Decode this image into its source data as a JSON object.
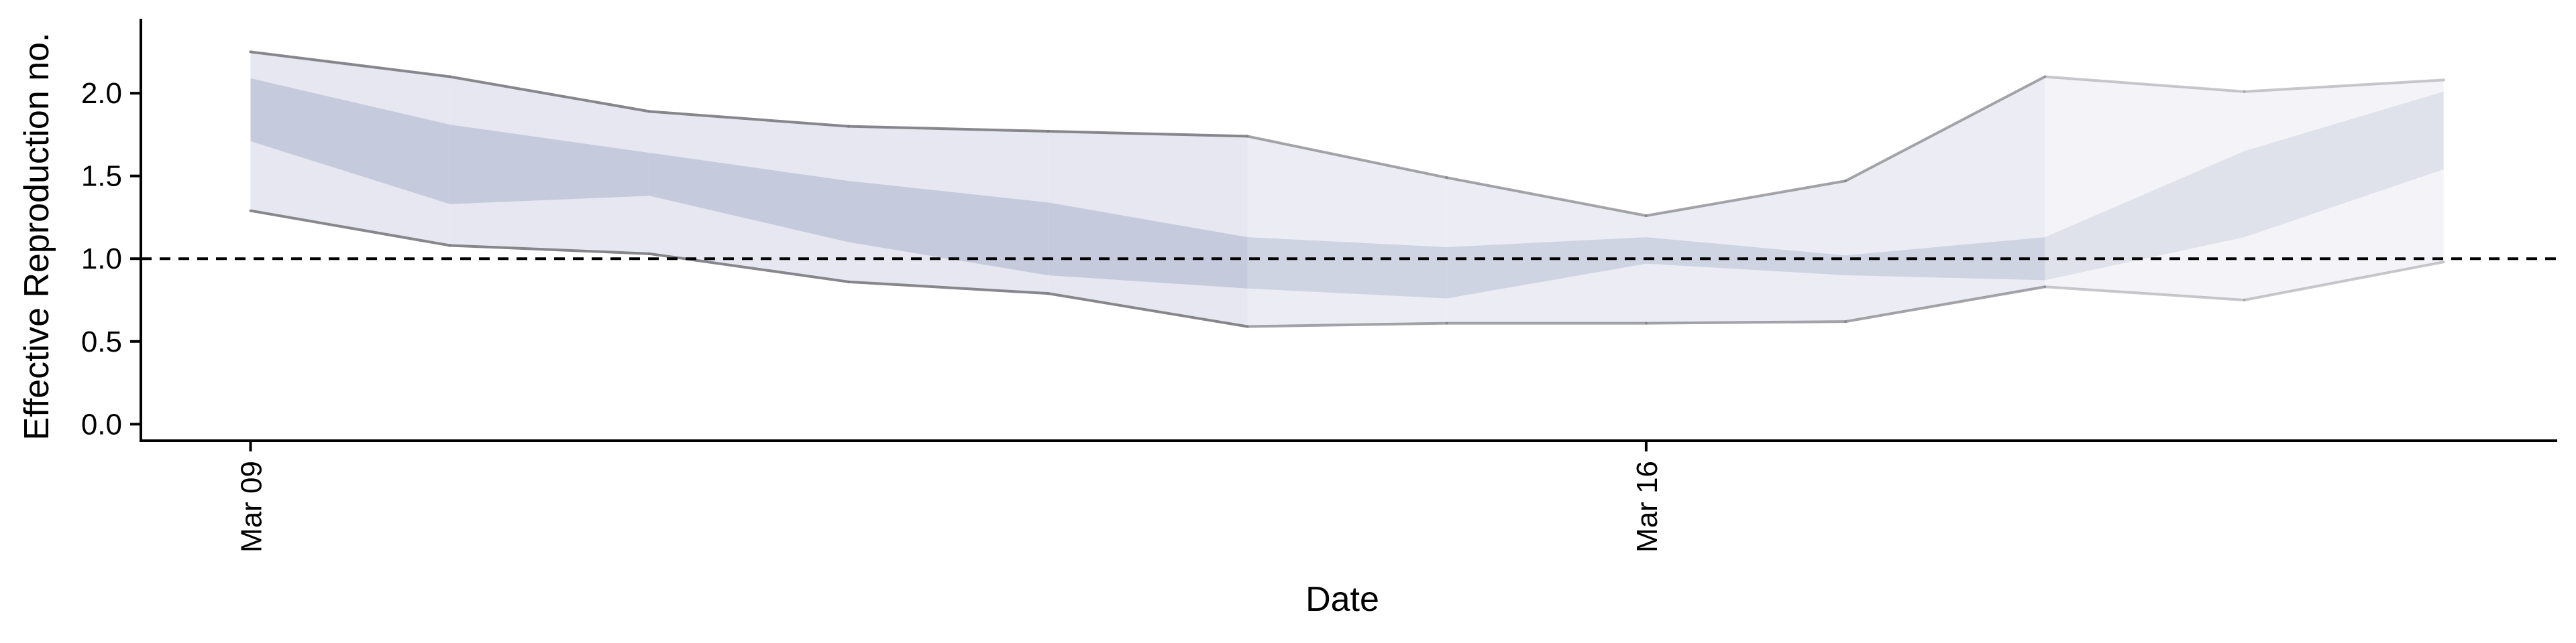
{
  "chart_data": {
    "type": "area",
    "title": "",
    "xlabel": "Date",
    "ylabel": "Effective Reproduction no.",
    "ylim": [
      -0.1,
      2.45
    ],
    "yticks": [
      0.0,
      0.5,
      1.0,
      1.5,
      2.0
    ],
    "ytick_labels": [
      "0.0",
      "0.5",
      "1.0",
      "1.5",
      "2.0"
    ],
    "xlim": [
      "2020-03-08",
      "2020-03-20"
    ],
    "xticks": [
      {
        "date": "2020-03-09",
        "label": "Mar 09"
      },
      {
        "date": "2020-03-16",
        "label": "Mar 16"
      }
    ],
    "dates": [
      "2020-03-09",
      "2020-03-10",
      "2020-03-11",
      "2020-03-12",
      "2020-03-13",
      "2020-03-14",
      "2020-03-15",
      "2020-03-16",
      "2020-03-17",
      "2020-03-18",
      "2020-03-19",
      "2020-03-20"
    ],
    "reference_line": {
      "y": 1.0,
      "style": "dashed"
    },
    "series": [
      {
        "kind": "outer-interval",
        "upper": [
          2.25,
          2.1,
          1.89,
          1.8,
          1.77,
          1.74,
          1.49,
          1.26,
          1.47,
          2.1,
          2.01,
          2.08
        ],
        "lower": [
          1.29,
          1.08,
          1.03,
          0.86,
          0.79,
          0.59,
          0.61,
          0.61,
          0.62,
          0.83,
          0.75,
          0.98
        ]
      },
      {
        "kind": "inner-interval",
        "upper": [
          2.09,
          1.81,
          1.64,
          1.47,
          1.34,
          1.13,
          1.07,
          1.13,
          1.02,
          1.13,
          1.65,
          2.01
        ],
        "lower": [
          1.71,
          1.33,
          1.38,
          1.1,
          0.9,
          0.82,
          0.76,
          0.97,
          0.9,
          0.87,
          1.13,
          1.54
        ]
      }
    ],
    "segment_opacity": [
      1,
      1,
      1,
      1,
      1,
      0.75,
      0.75,
      0.75,
      0.75,
      0.45,
      0.45,
      0.45
    ],
    "colors": {
      "outer_fill": "#e6e7f0",
      "inner_fill": "#c5cbdc",
      "bound_line": "#7a7a80",
      "reference_line": "#000000",
      "axis": "#000000"
    },
    "grid": false,
    "legend": "none"
  }
}
